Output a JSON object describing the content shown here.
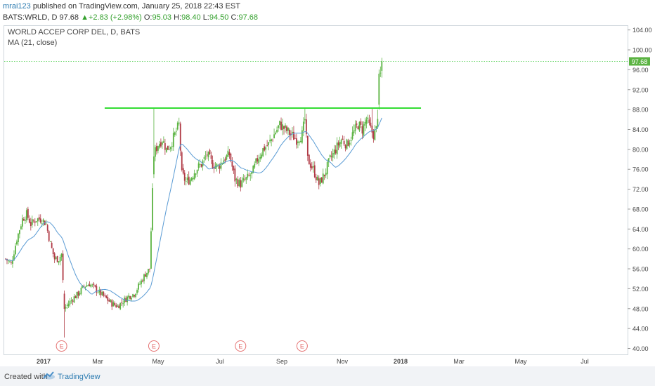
{
  "header": {
    "user": "mrai123",
    "published": "published on TradingView.com, January 25, 2018 22:43 EST",
    "symbol": "BATS:WRLD, D",
    "last": "97.68",
    "change": "+2.83 (+2.98%)",
    "o_label": "O:",
    "o_value": "95.03",
    "h_label": "H:",
    "h_value": "98.40",
    "l_label": "L:",
    "l_value": "94.50",
    "c_label": "C:",
    "c_value": "97.68"
  },
  "legend": {
    "name": "WORLD ACCEP CORP DEL, D, BATS",
    "ma": "MA (21, close)"
  },
  "price_tag": "97.68",
  "earnings_label": "E",
  "footer": {
    "created": "Created with",
    "brand": "TradingView"
  },
  "colors": {
    "up": "#5bb342",
    "down": "#b03a45",
    "ma": "#5a9bd4",
    "level": "#33dd33",
    "last_line": "#44cc44",
    "earnings": "#e57373"
  },
  "chart_data": {
    "type": "candlestick",
    "ylim": [
      38.8,
      104.8
    ],
    "y_ticks": [
      "104.00",
      "100.00",
      "96.00",
      "92.00",
      "88.00",
      "84.00",
      "80.00",
      "76.00",
      "72.00",
      "68.00",
      "64.00",
      "60.00",
      "56.00",
      "52.00",
      "48.00",
      "44.00",
      "40.00"
    ],
    "x_ticks": [
      "2017",
      "Mar",
      "May",
      "Jul",
      "Sep",
      "Nov",
      "2018",
      "Mar",
      "May",
      "Jul"
    ],
    "anchors": [
      {
        "d": 0,
        "p": 58
      },
      {
        "d": 4,
        "p": 57
      },
      {
        "d": 8,
        "p": 62
      },
      {
        "d": 12,
        "p": 66
      },
      {
        "d": 15,
        "p": 67
      },
      {
        "d": 18,
        "p": 65
      },
      {
        "d": 22,
        "p": 66
      },
      {
        "d": 26,
        "p": 66
      },
      {
        "d": 29,
        "p": 65
      },
      {
        "d": 32,
        "p": 61
      },
      {
        "d": 35,
        "p": 58
      },
      {
        "d": 38,
        "p": 58
      },
      {
        "d": 40,
        "p": 59
      },
      {
        "d": 42,
        "p": 48
      },
      {
        "d": 45,
        "p": 49
      },
      {
        "d": 48,
        "p": 50
      },
      {
        "d": 52,
        "p": 51
      },
      {
        "d": 56,
        "p": 52.5
      },
      {
        "d": 60,
        "p": 53
      },
      {
        "d": 64,
        "p": 52
      },
      {
        "d": 68,
        "p": 51
      },
      {
        "d": 72,
        "p": 50
      },
      {
        "d": 76,
        "p": 49
      },
      {
        "d": 80,
        "p": 48.5
      },
      {
        "d": 84,
        "p": 49.5
      },
      {
        "d": 88,
        "p": 50.5
      },
      {
        "d": 92,
        "p": 51
      },
      {
        "d": 96,
        "p": 53
      },
      {
        "d": 100,
        "p": 55
      },
      {
        "d": 103,
        "p": 56
      },
      {
        "d": 106,
        "p": 79
      },
      {
        "d": 109,
        "p": 81
      },
      {
        "d": 112,
        "p": 82
      },
      {
        "d": 115,
        "p": 80
      },
      {
        "d": 118,
        "p": 81
      },
      {
        "d": 121,
        "p": 83
      },
      {
        "d": 124,
        "p": 85
      },
      {
        "d": 126,
        "p": 75
      },
      {
        "d": 129,
        "p": 73.5
      },
      {
        "d": 132,
        "p": 74
      },
      {
        "d": 136,
        "p": 76
      },
      {
        "d": 140,
        "p": 77
      },
      {
        "d": 144,
        "p": 79
      },
      {
        "d": 148,
        "p": 77
      },
      {
        "d": 152,
        "p": 76.5
      },
      {
        "d": 156,
        "p": 78
      },
      {
        "d": 160,
        "p": 79
      },
      {
        "d": 164,
        "p": 74
      },
      {
        "d": 168,
        "p": 73
      },
      {
        "d": 172,
        "p": 74
      },
      {
        "d": 176,
        "p": 75
      },
      {
        "d": 180,
        "p": 78
      },
      {
        "d": 184,
        "p": 80
      },
      {
        "d": 188,
        "p": 81
      },
      {
        "d": 192,
        "p": 83
      },
      {
        "d": 196,
        "p": 85
      },
      {
        "d": 200,
        "p": 84
      },
      {
        "d": 204,
        "p": 83
      },
      {
        "d": 208,
        "p": 82
      },
      {
        "d": 212,
        "p": 83
      },
      {
        "d": 214,
        "p": 86
      },
      {
        "d": 216,
        "p": 78
      },
      {
        "d": 220,
        "p": 76
      },
      {
        "d": 224,
        "p": 73
      },
      {
        "d": 228,
        "p": 75
      },
      {
        "d": 232,
        "p": 78
      },
      {
        "d": 236,
        "p": 80
      },
      {
        "d": 240,
        "p": 82
      },
      {
        "d": 244,
        "p": 81
      },
      {
        "d": 248,
        "p": 83
      },
      {
        "d": 252,
        "p": 85
      },
      {
        "d": 255,
        "p": 84
      },
      {
        "d": 258,
        "p": 86
      },
      {
        "d": 261,
        "p": 84
      },
      {
        "d": 263,
        "p": 83
      },
      {
        "d": 265,
        "p": 84
      },
      {
        "d": 266,
        "p": 87
      },
      {
        "d": 267,
        "p": 94
      },
      {
        "d": 268,
        "p": 95
      },
      {
        "d": 269,
        "p": 97.68
      }
    ],
    "candle_count": 270,
    "ma_period": 21,
    "resistance": {
      "price": 88.3,
      "from_day": 106,
      "to_day": 297
    },
    "last_price": 97.68,
    "earnings_days": [
      40,
      106,
      168,
      212
    ]
  }
}
